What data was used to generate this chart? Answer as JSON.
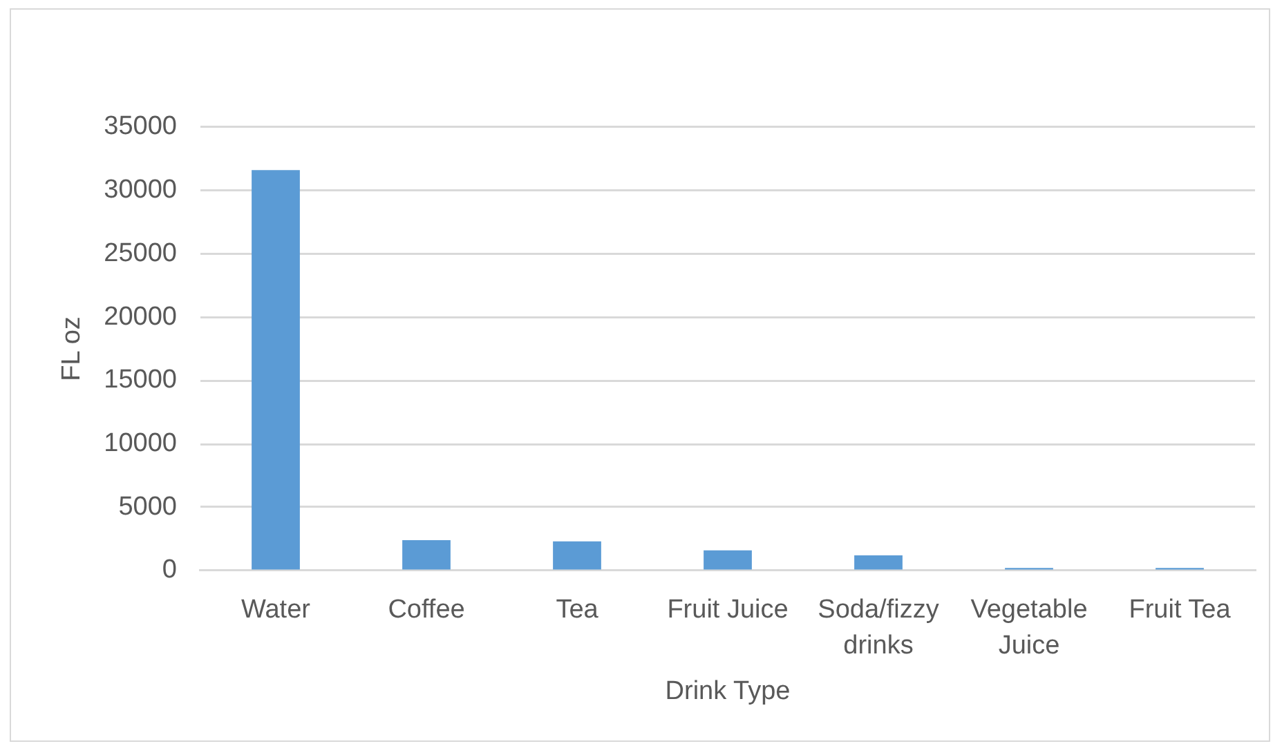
{
  "chart_data": {
    "type": "bar",
    "xlabel": "Drink Type",
    "ylabel": "FL oz",
    "categories": [
      "Water",
      "Coffee",
      "Tea",
      "Fruit Juice",
      "Soda/fizzy drinks",
      "Vegetable Juice",
      "Fruit Tea"
    ],
    "values": [
      31600,
      2400,
      2300,
      1600,
      1200,
      200,
      200
    ],
    "color": "#5b9bd5",
    "ylim": [
      0,
      35000
    ],
    "yticks": [
      0,
      5000,
      10000,
      15000,
      20000,
      25000,
      30000,
      35000
    ],
    "grid": "y",
    "legend": false
  }
}
